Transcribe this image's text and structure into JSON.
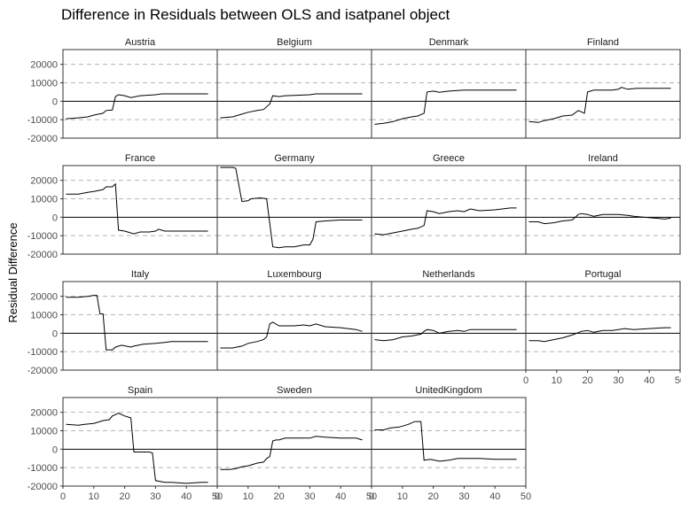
{
  "chart_data": {
    "type": "line",
    "title": "Difference in Residuals between OLS and isatpanel object",
    "xlabel": "",
    "ylabel": "Residual Difference",
    "xlim": [
      0,
      50
    ],
    "ylim": [
      -20000,
      28000
    ],
    "x_ticks": [
      0,
      10,
      20,
      30,
      40,
      50
    ],
    "y_ticks": [
      -20000,
      -10000,
      0,
      10000,
      20000
    ],
    "grid": "dashed horizontal",
    "zero_line": true,
    "panels": [
      {
        "name": "Austria",
        "points": [
          [
            1,
            -9500
          ],
          [
            5,
            -9000
          ],
          [
            8,
            -8500
          ],
          [
            10,
            -7500
          ],
          [
            13,
            -6500
          ],
          [
            14,
            -5000
          ],
          [
            16,
            -4800
          ],
          [
            17,
            2500
          ],
          [
            18,
            3500
          ],
          [
            20,
            3000
          ],
          [
            22,
            2000
          ],
          [
            25,
            3000
          ],
          [
            30,
            3500
          ],
          [
            32,
            4000
          ],
          [
            35,
            4000
          ],
          [
            40,
            4000
          ],
          [
            45,
            4000
          ],
          [
            47,
            4000
          ]
        ]
      },
      {
        "name": "Belgium",
        "points": [
          [
            1,
            -9000
          ],
          [
            5,
            -8500
          ],
          [
            8,
            -7000
          ],
          [
            10,
            -6000
          ],
          [
            13,
            -5000
          ],
          [
            15,
            -4500
          ],
          [
            17,
            -1500
          ],
          [
            18,
            3000
          ],
          [
            20,
            2500
          ],
          [
            22,
            3000
          ],
          [
            25,
            3200
          ],
          [
            30,
            3500
          ],
          [
            32,
            4000
          ],
          [
            35,
            4000
          ],
          [
            40,
            4000
          ],
          [
            45,
            4000
          ],
          [
            47,
            4000
          ]
        ]
      },
      {
        "name": "Denmark",
        "points": [
          [
            1,
            -12500
          ],
          [
            4,
            -12000
          ],
          [
            7,
            -11000
          ],
          [
            10,
            -9500
          ],
          [
            13,
            -8500
          ],
          [
            15,
            -8000
          ],
          [
            17,
            -6500
          ],
          [
            18,
            5000
          ],
          [
            20,
            5500
          ],
          [
            22,
            4800
          ],
          [
            25,
            5500
          ],
          [
            30,
            6000
          ],
          [
            35,
            6000
          ],
          [
            40,
            6000
          ],
          [
            45,
            6000
          ],
          [
            47,
            6000
          ]
        ]
      },
      {
        "name": "Finland",
        "points": [
          [
            1,
            -11000
          ],
          [
            4,
            -11500
          ],
          [
            6,
            -10500
          ],
          [
            9,
            -9500
          ],
          [
            12,
            -8000
          ],
          [
            15,
            -7500
          ],
          [
            17,
            -5000
          ],
          [
            19,
            -6500
          ],
          [
            20,
            5000
          ],
          [
            22,
            6000
          ],
          [
            25,
            6000
          ],
          [
            28,
            6000
          ],
          [
            30,
            6500
          ],
          [
            31,
            7500
          ],
          [
            33,
            6500
          ],
          [
            36,
            7000
          ],
          [
            40,
            7000
          ],
          [
            47,
            7000
          ]
        ]
      },
      {
        "name": "France",
        "points": [
          [
            1,
            12500
          ],
          [
            5,
            12500
          ],
          [
            8,
            13500
          ],
          [
            10,
            14000
          ],
          [
            13,
            15000
          ],
          [
            14,
            16500
          ],
          [
            16,
            16500
          ],
          [
            17,
            18000
          ],
          [
            18,
            -7000
          ],
          [
            20,
            -7500
          ],
          [
            23,
            -9000
          ],
          [
            25,
            -8000
          ],
          [
            28,
            -8000
          ],
          [
            30,
            -7500
          ],
          [
            31,
            -6500
          ],
          [
            33,
            -7500
          ],
          [
            40,
            -7500
          ],
          [
            47,
            -7500
          ]
        ]
      },
      {
        "name": "Germany",
        "points": [
          [
            1,
            27000
          ],
          [
            5,
            27000
          ],
          [
            6,
            26500
          ],
          [
            8,
            8500
          ],
          [
            10,
            9000
          ],
          [
            11,
            10000
          ],
          [
            14,
            10500
          ],
          [
            16,
            10000
          ],
          [
            18,
            -16000
          ],
          [
            20,
            -16500
          ],
          [
            22,
            -16000
          ],
          [
            25,
            -16000
          ],
          [
            28,
            -15000
          ],
          [
            30,
            -15000
          ],
          [
            31,
            -12000
          ],
          [
            32,
            -2500
          ],
          [
            35,
            -2000
          ],
          [
            40,
            -1500
          ],
          [
            47,
            -1500
          ]
        ]
      },
      {
        "name": "Greece",
        "points": [
          [
            1,
            -9000
          ],
          [
            4,
            -9500
          ],
          [
            7,
            -8500
          ],
          [
            10,
            -7500
          ],
          [
            13,
            -6500
          ],
          [
            15,
            -6000
          ],
          [
            17,
            -4500
          ],
          [
            18,
            3500
          ],
          [
            20,
            3000
          ],
          [
            22,
            2000
          ],
          [
            25,
            3000
          ],
          [
            28,
            3500
          ],
          [
            30,
            3000
          ],
          [
            32,
            4500
          ],
          [
            35,
            3500
          ],
          [
            40,
            4000
          ],
          [
            45,
            5000
          ],
          [
            47,
            5000
          ]
        ]
      },
      {
        "name": "Ireland",
        "points": [
          [
            1,
            -2500
          ],
          [
            4,
            -2500
          ],
          [
            6,
            -3500
          ],
          [
            9,
            -3000
          ],
          [
            12,
            -2000
          ],
          [
            15,
            -1500
          ],
          [
            17,
            1500
          ],
          [
            18,
            2000
          ],
          [
            20,
            1500
          ],
          [
            22,
            500
          ],
          [
            25,
            1500
          ],
          [
            30,
            1500
          ],
          [
            33,
            1000
          ],
          [
            35,
            500
          ],
          [
            38,
            0
          ],
          [
            42,
            -500
          ],
          [
            45,
            -1000
          ],
          [
            47,
            -500
          ]
        ]
      },
      {
        "name": "Italy",
        "points": [
          [
            1,
            19500
          ],
          [
            5,
            19500
          ],
          [
            8,
            20000
          ],
          [
            10,
            20500
          ],
          [
            11,
            20500
          ],
          [
            12,
            10500
          ],
          [
            13,
            10500
          ],
          [
            14,
            -9000
          ],
          [
            16,
            -9000
          ],
          [
            17,
            -7500
          ],
          [
            19,
            -6500
          ],
          [
            22,
            -7500
          ],
          [
            23,
            -7000
          ],
          [
            26,
            -6000
          ],
          [
            30,
            -5500
          ],
          [
            33,
            -5000
          ],
          [
            35,
            -4500
          ],
          [
            40,
            -4500
          ],
          [
            47,
            -4500
          ]
        ]
      },
      {
        "name": "Luxembourg",
        "points": [
          [
            1,
            -8000
          ],
          [
            5,
            -8000
          ],
          [
            8,
            -7000
          ],
          [
            10,
            -5500
          ],
          [
            13,
            -4500
          ],
          [
            15,
            -3500
          ],
          [
            16,
            -2000
          ],
          [
            17,
            5000
          ],
          [
            18,
            6000
          ],
          [
            20,
            4000
          ],
          [
            23,
            4000
          ],
          [
            25,
            4000
          ],
          [
            28,
            4500
          ],
          [
            30,
            4000
          ],
          [
            32,
            5000
          ],
          [
            35,
            3500
          ],
          [
            40,
            3000
          ],
          [
            45,
            2000
          ],
          [
            47,
            1000
          ]
        ]
      },
      {
        "name": "Netherlands",
        "points": [
          [
            1,
            -3500
          ],
          [
            4,
            -4000
          ],
          [
            7,
            -3500
          ],
          [
            10,
            -2000
          ],
          [
            13,
            -1500
          ],
          [
            16,
            -500
          ],
          [
            17,
            1000
          ],
          [
            18,
            2000
          ],
          [
            20,
            1500
          ],
          [
            22,
            0
          ],
          [
            25,
            1000
          ],
          [
            28,
            1500
          ],
          [
            30,
            1000
          ],
          [
            32,
            2000
          ],
          [
            35,
            2000
          ],
          [
            40,
            2000
          ],
          [
            45,
            2000
          ],
          [
            47,
            2000
          ]
        ]
      },
      {
        "name": "Portugal",
        "points": [
          [
            1,
            -4000
          ],
          [
            4,
            -4000
          ],
          [
            6,
            -4500
          ],
          [
            9,
            -3500
          ],
          [
            12,
            -2500
          ],
          [
            15,
            -1000
          ],
          [
            18,
            1000
          ],
          [
            20,
            1500
          ],
          [
            22,
            500
          ],
          [
            25,
            1500
          ],
          [
            28,
            1500
          ],
          [
            30,
            2000
          ],
          [
            32,
            2500
          ],
          [
            35,
            2000
          ],
          [
            40,
            2500
          ],
          [
            45,
            3000
          ],
          [
            47,
            3000
          ]
        ]
      },
      {
        "name": "Spain",
        "points": [
          [
            1,
            13500
          ],
          [
            5,
            13000
          ],
          [
            7,
            13500
          ],
          [
            10,
            14000
          ],
          [
            13,
            15500
          ],
          [
            15,
            16000
          ],
          [
            16,
            18000
          ],
          [
            18,
            19500
          ],
          [
            20,
            18000
          ],
          [
            22,
            17000
          ],
          [
            23,
            -1500
          ],
          [
            25,
            -1500
          ],
          [
            28,
            -1500
          ],
          [
            29,
            -2000
          ],
          [
            30,
            -17000
          ],
          [
            33,
            -18000
          ],
          [
            35,
            -18000
          ],
          [
            40,
            -18500
          ],
          [
            45,
            -18000
          ],
          [
            47,
            -18000
          ]
        ]
      },
      {
        "name": "Sweden",
        "points": [
          [
            1,
            -11000
          ],
          [
            4,
            -11000
          ],
          [
            6,
            -10500
          ],
          [
            8,
            -9500
          ],
          [
            10,
            -9000
          ],
          [
            13,
            -7500
          ],
          [
            15,
            -7000
          ],
          [
            16,
            -5000
          ],
          [
            17,
            -4000
          ],
          [
            18,
            4500
          ],
          [
            19,
            5000
          ],
          [
            20,
            5000
          ],
          [
            22,
            6000
          ],
          [
            25,
            6000
          ],
          [
            28,
            6000
          ],
          [
            30,
            6000
          ],
          [
            32,
            7000
          ],
          [
            35,
            6500
          ],
          [
            40,
            6000
          ],
          [
            45,
            6000
          ],
          [
            47,
            5000
          ]
        ]
      },
      {
        "name": "UnitedKingdom",
        "points": [
          [
            1,
            10500
          ],
          [
            4,
            10500
          ],
          [
            6,
            11500
          ],
          [
            9,
            12000
          ],
          [
            12,
            13500
          ],
          [
            14,
            15000
          ],
          [
            16,
            15000
          ],
          [
            17,
            -6000
          ],
          [
            19,
            -5500
          ],
          [
            22,
            -6500
          ],
          [
            25,
            -6000
          ],
          [
            28,
            -5000
          ],
          [
            30,
            -5000
          ],
          [
            33,
            -5000
          ],
          [
            35,
            -5000
          ],
          [
            40,
            -5500
          ],
          [
            45,
            -5500
          ],
          [
            47,
            -5500
          ]
        ]
      }
    ]
  }
}
